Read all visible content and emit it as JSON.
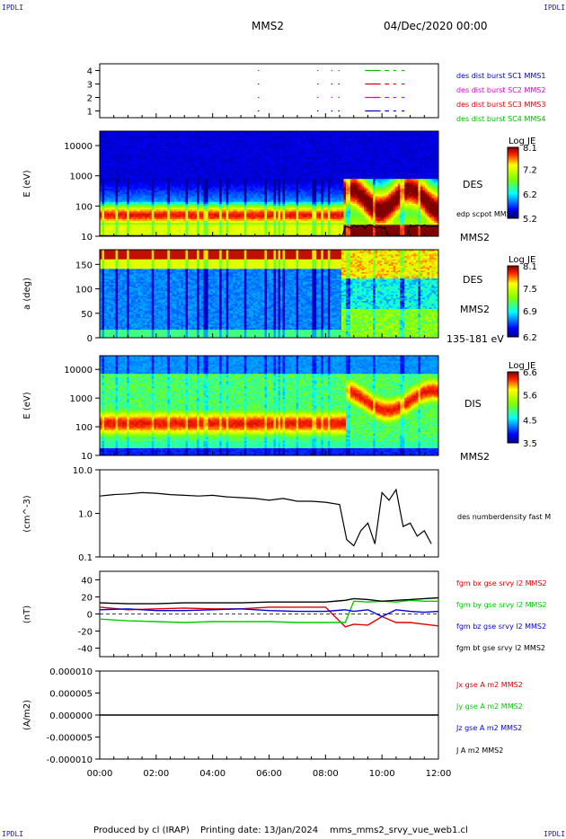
{
  "corner_labels": {
    "top_left": "IPDLI",
    "top_right": "IPDLI",
    "bottom_left": "IPDLI",
    "bottom_right": "IPDLI"
  },
  "header": {
    "spacecraft": "MMS2",
    "datetime": "04/Dec/2020 00:00"
  },
  "footer": {
    "producer": "Produced by cl (IRAP)",
    "printing": "Printing date: 13/Jan/2024",
    "file": "mms_mms2_srvy_vue_web1.cl"
  },
  "colors": {
    "mms1": "#0000cc",
    "mms2": "#dd00dd",
    "mms3": "#dd0000",
    "mms4": "#00bb00",
    "bx": "#dd0000",
    "by": "#00cc00",
    "bz": "#0000dd",
    "bt": "#000000"
  },
  "chart_data": [
    {
      "type": "scatter",
      "panel": "burst",
      "yticks": [
        "1",
        "2",
        "3",
        "4"
      ],
      "ylim": [
        0.5,
        4.5
      ],
      "legend": [
        {
          "name": "des dist burst SC1 MMS1",
          "color": "#0000cc"
        },
        {
          "name": "des dist burst SC2 MMS2",
          "color": "#dd00dd"
        },
        {
          "name": "des dist burst SC3 MMS3",
          "color": "#dd0000"
        },
        {
          "name": "des dist burst SC4 MMS4",
          "color": "#00bb00"
        }
      ],
      "intervals_hours": [
        [
          5.6,
          5.65
        ],
        [
          7.7,
          7.75
        ],
        [
          8.2,
          8.25
        ],
        [
          8.45,
          8.5
        ],
        [
          9.4,
          9.95
        ],
        [
          10.1,
          10.25
        ],
        [
          10.4,
          10.5
        ],
        [
          10.7,
          10.8
        ]
      ]
    },
    {
      "type": "heatmap",
      "panel": "des_energy",
      "ylabel": "E (eV)",
      "yscale": "log",
      "ylim": [
        10,
        30000
      ],
      "yticks": [
        "10",
        "100",
        "1000",
        "10000"
      ],
      "right_labels": [
        "DES",
        "edp scpot MMS2",
        "MMS2"
      ],
      "colorbar": {
        "title": "Log JE",
        "ticks": [
          "5.2",
          "6.2",
          "7.2",
          "8.1"
        ],
        "range": [
          5.2,
          8.1
        ]
      }
    },
    {
      "type": "heatmap",
      "panel": "des_pitch",
      "ylabel": "a (deg)",
      "ylim": [
        0,
        180
      ],
      "yticks": [
        "0",
        "50",
        "100",
        "150"
      ],
      "right_labels": [
        "DES",
        "MMS2",
        "135-181 eV"
      ],
      "colorbar": {
        "title": "Log JE",
        "ticks": [
          "6.2",
          "6.9",
          "7.5",
          "8.1"
        ],
        "range": [
          6.2,
          8.1
        ]
      }
    },
    {
      "type": "heatmap",
      "panel": "dis_energy",
      "ylabel": "E (eV)",
      "yscale": "log",
      "ylim": [
        10,
        30000
      ],
      "yticks": [
        "10",
        "100",
        "1000",
        "10000"
      ],
      "right_labels": [
        "DIS",
        "MMS2"
      ],
      "colorbar": {
        "title": "Log JE",
        "ticks": [
          "3.5",
          "4.5",
          "5.6",
          "6.6"
        ],
        "range": [
          3.5,
          6.6
        ]
      }
    },
    {
      "type": "line",
      "panel": "density",
      "ylabel": "(cm^-3)",
      "yscale": "log",
      "ylim": [
        0.1,
        10
      ],
      "yticks": [
        "0.1",
        "1.0",
        "10.0"
      ],
      "series": [
        {
          "name": "des numberdensity fast M",
          "color": "#000000"
        }
      ],
      "x_hours": [
        0,
        0.5,
        1,
        1.5,
        2,
        2.5,
        3,
        3.5,
        4,
        4.5,
        5,
        5.5,
        6,
        6.5,
        7,
        7.5,
        8,
        8.5,
        8.75,
        9,
        9.25,
        9.5,
        9.75,
        10,
        10.25,
        10.5,
        10.75,
        11,
        11.25,
        11.5,
        11.75
      ],
      "values": [
        2.5,
        2.7,
        2.8,
        3.0,
        2.9,
        2.7,
        2.6,
        2.5,
        2.6,
        2.4,
        2.3,
        2.2,
        2.0,
        2.2,
        1.9,
        1.9,
        1.8,
        1.6,
        0.25,
        0.18,
        0.4,
        0.6,
        0.2,
        3.0,
        2.0,
        3.5,
        0.5,
        0.6,
        0.3,
        0.4,
        0.2
      ]
    },
    {
      "type": "line",
      "panel": "fgm",
      "ylabel": "(nT)",
      "ylim": [
        -50,
        50
      ],
      "yticks": [
        "-40",
        "-20",
        "0",
        "20",
        "40"
      ],
      "x_hours": [
        0,
        1,
        2,
        3,
        4,
        5,
        6,
        7,
        8,
        8.7,
        9,
        9.5,
        10,
        10.5,
        11,
        11.5,
        12
      ],
      "series": [
        {
          "name": "fgm bx gse srvy l2 MMS2",
          "color": "#dd0000",
          "values": [
            8,
            5,
            6,
            7,
            6,
            6,
            8,
            8,
            8,
            -15,
            -12,
            -13,
            -3,
            -10,
            -10,
            -12,
            -14
          ]
        },
        {
          "name": "fgm by gse srvy l2 MMS2",
          "color": "#00cc00",
          "values": [
            -6,
            -8,
            -9,
            -10,
            -9,
            -9,
            -9,
            -10,
            -10,
            -10,
            15,
            14,
            15,
            14,
            16,
            15,
            15
          ]
        },
        {
          "name": "fgm bz gse srvy l2 MMS2",
          "color": "#0000dd",
          "values": [
            5,
            6,
            4,
            4,
            5,
            6,
            4,
            3,
            3,
            5,
            3,
            5,
            -3,
            5,
            3,
            2,
            3
          ]
        },
        {
          "name": "fgm bt gse srvy l2 MMS2",
          "color": "#000000",
          "values": [
            13,
            12,
            12,
            13,
            13,
            13,
            14,
            14,
            14,
            16,
            18,
            17,
            15,
            16,
            17,
            18,
            19
          ]
        }
      ]
    },
    {
      "type": "line",
      "panel": "current",
      "ylabel": "(A/m2)",
      "ylim": [
        -0.0001,
        0.0001
      ],
      "yticks": [
        "-0.000010",
        "-0.000005",
        "0.000000",
        "0.000005",
        "0.000010"
      ],
      "series": [
        {
          "name": "Jx gse A m2 MMS2",
          "color": "#dd0000"
        },
        {
          "name": "Jy gse A m2 MMS2",
          "color": "#00cc00"
        },
        {
          "name": "Jz gse A m2 MMS2",
          "color": "#0000dd"
        },
        {
          "name": "J A m2 MMS2",
          "color": "#000000"
        }
      ],
      "values": [
        0,
        0
      ]
    }
  ],
  "time_axis": {
    "xlim": [
      0,
      12
    ],
    "ticks": [
      "00:00",
      "02:00",
      "04:00",
      "06:00",
      "08:00",
      "10:00",
      "12:00"
    ]
  }
}
